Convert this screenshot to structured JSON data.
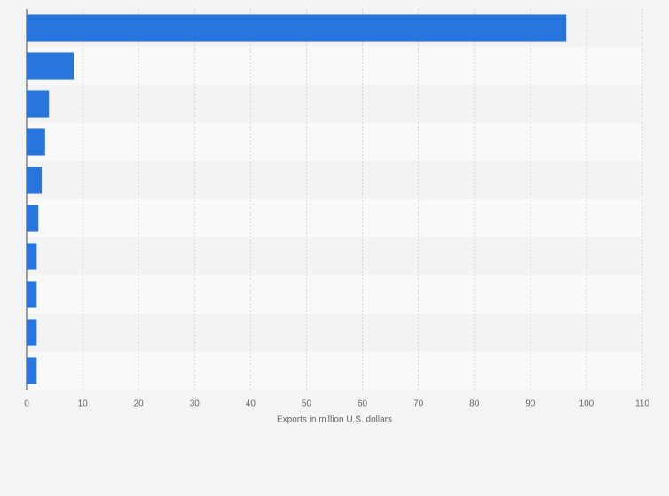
{
  "chart_data": {
    "type": "hbar",
    "x_label": "Exports in million U.S. dollars",
    "categories": [
      null,
      null,
      null,
      null,
      null,
      null,
      null,
      null,
      null,
      null
    ],
    "values": [
      96.4,
      8.4,
      4.0,
      3.3,
      2.7,
      2.1,
      1.8,
      1.8,
      1.8,
      1.8
    ],
    "color": "#2876dd",
    "xlim": [
      0,
      110
    ],
    "xticks": [
      0,
      10,
      20,
      30,
      40,
      50,
      60,
      70,
      80,
      90,
      100,
      110
    ],
    "grid": true
  }
}
